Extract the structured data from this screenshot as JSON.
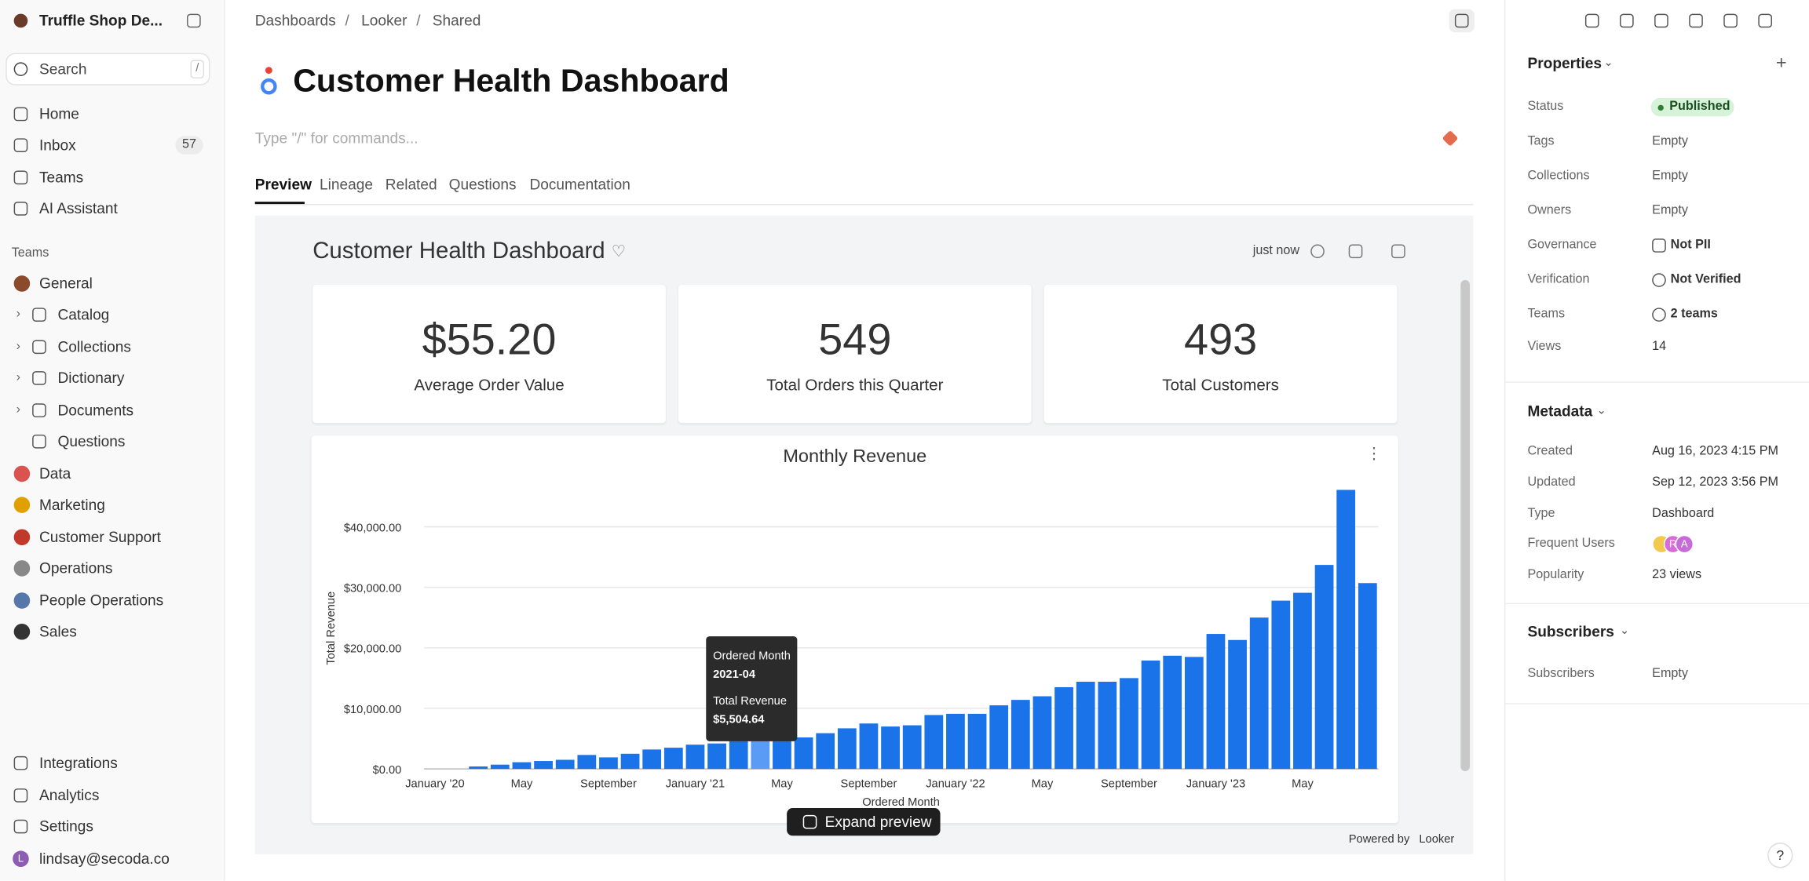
{
  "sidebar": {
    "workspace": "Truffle Shop De...",
    "search": "Search",
    "search_shortcut": "/",
    "nav": [
      {
        "label": "Home"
      },
      {
        "label": "Inbox",
        "badge": "57"
      },
      {
        "label": "Teams"
      },
      {
        "label": "AI Assistant"
      }
    ],
    "teams_heading": "Teams",
    "teams": [
      "General",
      "Catalog",
      "Collections",
      "Dictionary",
      "Documents",
      "Questions",
      "Data",
      "Marketing",
      "Customer Support",
      "Operations",
      "People Operations",
      "Sales"
    ],
    "bottom": [
      "Integrations",
      "Analytics",
      "Settings"
    ],
    "user_initial": "L",
    "user": "lindsay@secoda.co"
  },
  "breadcrumbs": [
    "Dashboards",
    "Looker",
    "Shared"
  ],
  "title": "Customer Health Dashboard",
  "command_placeholder": "Type \"/\" for commands...",
  "tabs": [
    "Preview",
    "Lineage",
    "Related",
    "Questions",
    "Documentation"
  ],
  "dashboard": {
    "title": "Customer Health Dashboard",
    "updated": "just now",
    "kpis": [
      {
        "value": "$55.20",
        "label": "Average Order Value"
      },
      {
        "value": "549",
        "label": "Total Orders this Quarter"
      },
      {
        "value": "493",
        "label": "Total Customers"
      }
    ],
    "expand": "Expand preview",
    "powered_by": "Powered by",
    "brand": "Looker"
  },
  "chart_data": {
    "type": "bar",
    "title": "Monthly Revenue",
    "xlabel": "Ordered Month",
    "ylabel": "Total Revenue",
    "color": "#1a73e8",
    "categories": [
      "January '20",
      null,
      null,
      null,
      "May",
      null,
      null,
      null,
      "September",
      null,
      null,
      null,
      "January '21",
      null,
      null,
      null,
      "May",
      null,
      null,
      null,
      "September",
      null,
      null,
      null,
      "January '22",
      null,
      null,
      null,
      "May",
      null,
      null,
      null,
      "September",
      null,
      null,
      null,
      "January '23",
      null,
      null,
      null,
      "May",
      null,
      null,
      null
    ],
    "values": [
      0,
      0,
      400,
      700,
      1100,
      1300,
      1500,
      2300,
      1900,
      2500,
      3200,
      3500,
      4000,
      4200,
      4600,
      5504.64,
      5000,
      5200,
      5900,
      6700,
      7500,
      7000,
      7200,
      8900,
      9100,
      9100,
      10500,
      11400,
      12000,
      13500,
      14400,
      14400,
      15000,
      17900,
      18700,
      18500,
      22300,
      21300,
      25000,
      27800,
      29100,
      33700,
      46100,
      30700
    ],
    "ylim": [
      0,
      48000
    ],
    "yticks": [
      {
        "value": 0,
        "label": "$0.00"
      },
      {
        "value": 10000,
        "label": "$10,000.00"
      },
      {
        "value": 20000,
        "label": "$20,000.00"
      },
      {
        "value": 30000,
        "label": "$30,000.00"
      },
      {
        "value": 40000,
        "label": "$40,000.00"
      }
    ],
    "grid": true,
    "tooltip": {
      "index": 15,
      "x_title": "Ordered Month",
      "x_value": "2021-04",
      "y_title": "Total Revenue",
      "y_value_label": "$5,504.64"
    }
  },
  "panel": {
    "sections": [
      {
        "title": "Properties",
        "rows": [
          [
            "Status",
            "Published"
          ],
          [
            "Tags",
            "Empty"
          ],
          [
            "Collections",
            "Empty"
          ],
          [
            "Owners",
            "Empty"
          ],
          [
            "Governance",
            "Not PII"
          ],
          [
            "Verification",
            "Not Verified"
          ],
          [
            "Teams",
            "2 teams"
          ],
          [
            "Views",
            "14"
          ]
        ]
      },
      {
        "title": "Metadata",
        "rows": [
          [
            "Created",
            "Aug 16, 2023 4:15 PM"
          ],
          [
            "Updated",
            "Sep 12, 2023 3:56 PM"
          ],
          [
            "Type",
            "Dashboard"
          ],
          [
            "Frequent Users",
            null
          ],
          [
            "Popularity",
            "23 views"
          ]
        ]
      },
      {
        "title": "Subscribers",
        "rows": [
          [
            "Subscribers",
            "Empty"
          ]
        ]
      }
    ],
    "frequent_users": [
      "R",
      "A"
    ],
    "help": "?"
  }
}
